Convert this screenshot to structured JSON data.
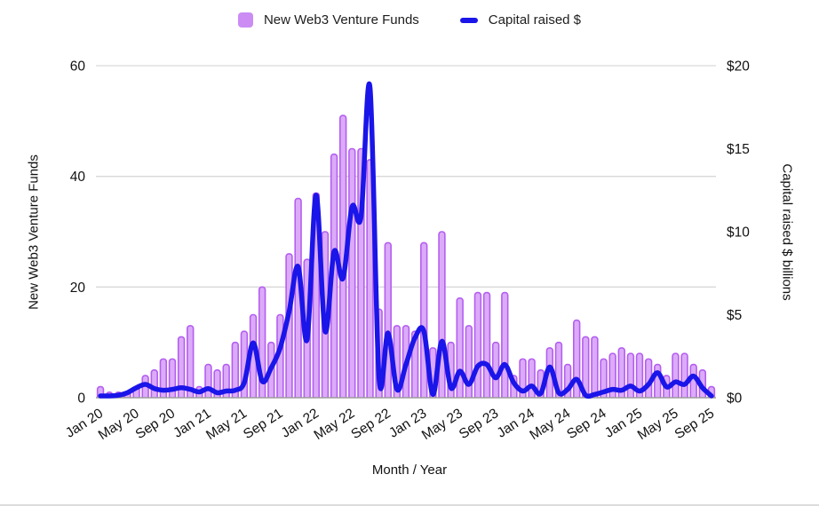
{
  "legend": {
    "items": [
      {
        "label": "New Web3 Venture Funds",
        "marker": "square",
        "color": "#cb8cf4"
      },
      {
        "label": "Capital raised $",
        "marker": "line",
        "color": "#1a15e8"
      }
    ]
  },
  "chart_data": {
    "type": "combo",
    "categories": [
      "Jan 20",
      "Feb 20",
      "Mar 20",
      "Apr 20",
      "May 20",
      "Jun 20",
      "Jul 20",
      "Aug 20",
      "Sep 20",
      "Oct 20",
      "Nov 20",
      "Dec 20",
      "Jan 21",
      "Feb 21",
      "Mar 21",
      "Apr 21",
      "May 21",
      "Jun 21",
      "Jul 21",
      "Aug 21",
      "Sep 21",
      "Oct 21",
      "Nov 21",
      "Dec 21",
      "Jan 22",
      "Feb 22",
      "Mar 22",
      "Apr 22",
      "May 22",
      "Jun 22",
      "Jul 22",
      "Aug 22",
      "Sep 22",
      "Oct 22",
      "Nov 22",
      "Dec 22",
      "Jan 23",
      "Feb 23",
      "Mar 23",
      "Apr 23",
      "May 23",
      "Jun 23",
      "Jul 23",
      "Aug 23",
      "Sep 23",
      "Oct 23",
      "Nov 23",
      "Dec 23",
      "Jan 24",
      "Feb 24",
      "Mar 24",
      "Apr 24",
      "May 24",
      "Jun 24",
      "Jul 24",
      "Aug 24",
      "Sep 24",
      "Oct 24",
      "Nov 24",
      "Dec 24",
      "Jan 25",
      "Feb 25",
      "Mar 25",
      "Apr 25",
      "May 25",
      "Jun 25",
      "Jul 25",
      "Aug 25",
      "Sep 25"
    ],
    "x_axis": {
      "title": "Month / Year",
      "tick_every": 4
    },
    "left_axis": {
      "title": "New Web3 Venture Funds",
      "min": 0,
      "max": 60,
      "ticks": [
        "0",
        "20",
        "40",
        "60"
      ],
      "tick_values": [
        0,
        20,
        40,
        60
      ]
    },
    "right_axis": {
      "title": "Capital raised $ billions",
      "min": 0,
      "max": 20,
      "ticks": [
        "$0",
        "$5",
        "$10",
        "$15",
        "$20"
      ],
      "tick_values": [
        0,
        5,
        10,
        15,
        20
      ]
    },
    "series": [
      {
        "name": "New Web3 Venture Funds",
        "type": "bar",
        "axis": "left",
        "fill": "#dcabf8",
        "border": "#b45ef0",
        "values": [
          2,
          1,
          1,
          1,
          2,
          4,
          5,
          7,
          7,
          11,
          13,
          2,
          6,
          5,
          6,
          10,
          12,
          15,
          20,
          10,
          15,
          26,
          36,
          25,
          37,
          30,
          44,
          51,
          45,
          45,
          43,
          16,
          28,
          13,
          13,
          12,
          28,
          9,
          30,
          10,
          18,
          13,
          19,
          19,
          10,
          19,
          4,
          7,
          7,
          5,
          9,
          10,
          6,
          14,
          11,
          11,
          7,
          8,
          9,
          8,
          8,
          7,
          6,
          4,
          8,
          8,
          6,
          5,
          2
        ]
      },
      {
        "name": "Capital raised $",
        "type": "line",
        "axis": "right",
        "color": "#1a15e8",
        "values": [
          0.05,
          0.1,
          0.15,
          0.3,
          0.6,
          0.8,
          0.55,
          0.45,
          0.5,
          0.6,
          0.5,
          0.35,
          0.55,
          0.3,
          0.4,
          0.45,
          0.9,
          3.3,
          1.0,
          1.8,
          3.0,
          5.2,
          7.9,
          3.5,
          12.2,
          4.0,
          8.8,
          7.2,
          11.5,
          10.9,
          18.7,
          1.2,
          3.9,
          0.5,
          2.0,
          3.6,
          4.0,
          0.2,
          3.4,
          0.6,
          1.6,
          0.8,
          1.9,
          2.0,
          1.2,
          2.0,
          0.9,
          0.4,
          0.7,
          0.25,
          1.85,
          0.3,
          0.5,
          1.1,
          0.15,
          0.2,
          0.35,
          0.5,
          0.45,
          0.7,
          0.4,
          0.8,
          1.5,
          0.65,
          0.95,
          0.8,
          1.3,
          0.6,
          0.1
        ]
      }
    ],
    "grid": true,
    "legend_position": "top"
  },
  "colors": {
    "background": "#ffffff",
    "grid": "#d9d9d9",
    "axis_line": "#9b9b9b",
    "text": "#111111"
  }
}
